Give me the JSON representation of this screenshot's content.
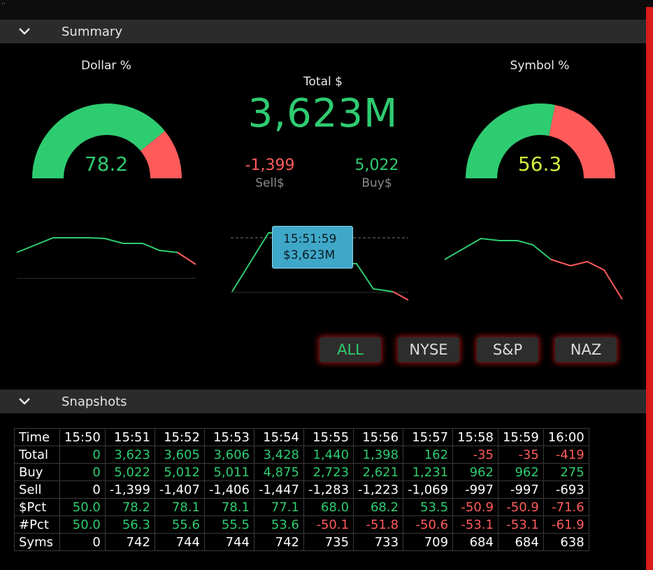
{
  "summary": {
    "header_title": "Summary",
    "dollar_gauge": {
      "title": "Dollar %",
      "value": "78.2",
      "pct": 78.2
    },
    "symbol_gauge": {
      "title": "Symbol %",
      "value": "56.3",
      "pct": 56.3
    },
    "total": {
      "label": "Total $",
      "value": "3,623M"
    },
    "sell": {
      "value": "-1,399",
      "label": "Sell$"
    },
    "buy": {
      "value": "5,022",
      "label": "Buy$"
    },
    "tooltip": {
      "time": "15:51:59",
      "value": "$3,623M"
    },
    "filters": [
      "ALL",
      "NYSE",
      "S&P",
      "NAZ"
    ],
    "active_filter": "ALL"
  },
  "snapshots": {
    "header_title": "Snapshots",
    "columns": [
      "Time",
      "15:50",
      "15:51",
      "15:52",
      "15:53",
      "15:54",
      "15:55",
      "15:56",
      "15:57",
      "15:58",
      "15:59",
      "16:00"
    ],
    "rows": [
      {
        "label": "Total",
        "cells": [
          "0",
          "3,623",
          "3,605",
          "3,606",
          "3,428",
          "1,440",
          "1,398",
          "162",
          "-35",
          "-35",
          "-419"
        ]
      },
      {
        "label": "Buy",
        "cells": [
          "0",
          "5,022",
          "5,012",
          "5,011",
          "4,875",
          "2,723",
          "2,621",
          "1,231",
          "962",
          "962",
          "275"
        ]
      },
      {
        "label": "Sell",
        "cells": [
          "0",
          "-1,399",
          "-1,407",
          "-1,406",
          "-1,447",
          "-1,283",
          "-1,223",
          "-1,069",
          "-997",
          "-997",
          "-693"
        ]
      },
      {
        "label": "$Pct",
        "cells": [
          "50.0",
          "78.2",
          "78.1",
          "78.1",
          "77.1",
          "68.0",
          "68.2",
          "53.5",
          "-50.9",
          "-50.9",
          "-71.6"
        ]
      },
      {
        "label": "#Pct",
        "cells": [
          "50.0",
          "56.3",
          "55.6",
          "55.5",
          "53.6",
          "-50.1",
          "-51.8",
          "-50.6",
          "-53.1",
          "-53.1",
          "-61.9"
        ]
      },
      {
        "label": "Syms",
        "cells": [
          "0",
          "742",
          "744",
          "744",
          "742",
          "735",
          "733",
          "709",
          "684",
          "684",
          "638"
        ]
      }
    ]
  },
  "colors": {
    "green": "#2ecc71",
    "red": "#ff5b5b",
    "yellow": "#d4f03c",
    "accent_glow": "#be1414",
    "tooltip_bg": "#3fa8c9"
  }
}
